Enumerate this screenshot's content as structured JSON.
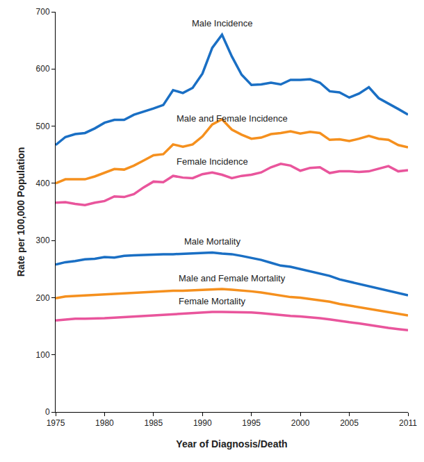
{
  "chart_data": {
    "type": "line",
    "x_label": "Year of Diagnosis/Death",
    "y_label": "Rate per 100,000 Population",
    "x": [
      1975,
      1976,
      1977,
      1978,
      1979,
      1980,
      1981,
      1982,
      1983,
      1984,
      1985,
      1986,
      1987,
      1988,
      1989,
      1990,
      1991,
      1992,
      1993,
      1994,
      1995,
      1996,
      1997,
      1998,
      1999,
      2000,
      2001,
      2002,
      2003,
      2004,
      2005,
      2006,
      2007,
      2008,
      2009,
      2010,
      2011
    ],
    "xlim": [
      1975,
      2011
    ],
    "xticks": [
      1975,
      1980,
      1985,
      1990,
      1995,
      2000,
      2005,
      2011
    ],
    "ylim": [
      0,
      700
    ],
    "yticks": [
      0,
      100,
      200,
      300,
      400,
      500,
      600,
      700
    ],
    "grid": false,
    "series": [
      {
        "name": "Male Incidence",
        "color": "#1a6fc4",
        "values": [
          467,
          481,
          486,
          488,
          496,
          506,
          511,
          511,
          520,
          525,
          531,
          537,
          563,
          558,
          567,
          592,
          637,
          660,
          622,
          590,
          572,
          573,
          576,
          573,
          581,
          581,
          582,
          576,
          561,
          559,
          550,
          557,
          568,
          549,
          540,
          530,
          520
        ]
      },
      {
        "name": "Male and Female Incidence",
        "color": "#f5901e",
        "values": [
          400,
          407,
          407,
          407,
          412,
          418,
          425,
          424,
          431,
          440,
          449,
          451,
          468,
          464,
          468,
          482,
          503,
          512,
          494,
          485,
          478,
          480,
          486,
          488,
          491,
          487,
          490,
          488,
          476,
          477,
          474,
          478,
          483,
          478,
          476,
          467,
          463
        ]
      },
      {
        "name": "Female Incidence",
        "color": "#e9559c",
        "values": [
          366,
          367,
          364,
          362,
          366,
          369,
          377,
          376,
          381,
          393,
          403,
          402,
          413,
          410,
          409,
          416,
          419,
          415,
          409,
          413,
          415,
          419,
          428,
          434,
          431,
          422,
          427,
          428,
          418,
          421,
          421,
          420,
          421,
          425,
          430,
          421,
          423
        ]
      },
      {
        "name": "Male Mortality",
        "color": "#1a6fc4",
        "values": [
          258,
          262,
          264,
          267,
          268,
          271,
          270,
          273,
          274,
          275,
          275,
          276,
          276,
          277,
          278,
          279,
          279,
          277,
          276,
          273,
          270,
          266,
          261,
          256,
          254,
          250,
          246,
          243,
          238,
          232,
          228,
          223,
          219,
          215,
          211,
          208,
          204
        ]
      },
      {
        "name": "Male and Female Mortality",
        "color": "#f5901e",
        "values": [
          199,
          202,
          203,
          204,
          205,
          206,
          207,
          208,
          209,
          210,
          211,
          211,
          212,
          212,
          213,
          214,
          215,
          215,
          214,
          213,
          211,
          209,
          206,
          203,
          201,
          200,
          198,
          196,
          193,
          189,
          186,
          183,
          180,
          177,
          174,
          172,
          169
        ]
      },
      {
        "name": "Female Mortality",
        "color": "#e9559c",
        "values": [
          160,
          162,
          163,
          163,
          163,
          164,
          165,
          166,
          167,
          168,
          170,
          171,
          171,
          172,
          173,
          174,
          175,
          175,
          175,
          175,
          174,
          173,
          171,
          169,
          168,
          167,
          166,
          164,
          162,
          159,
          157,
          155,
          152,
          149,
          147,
          145,
          143
        ]
      }
    ]
  }
}
